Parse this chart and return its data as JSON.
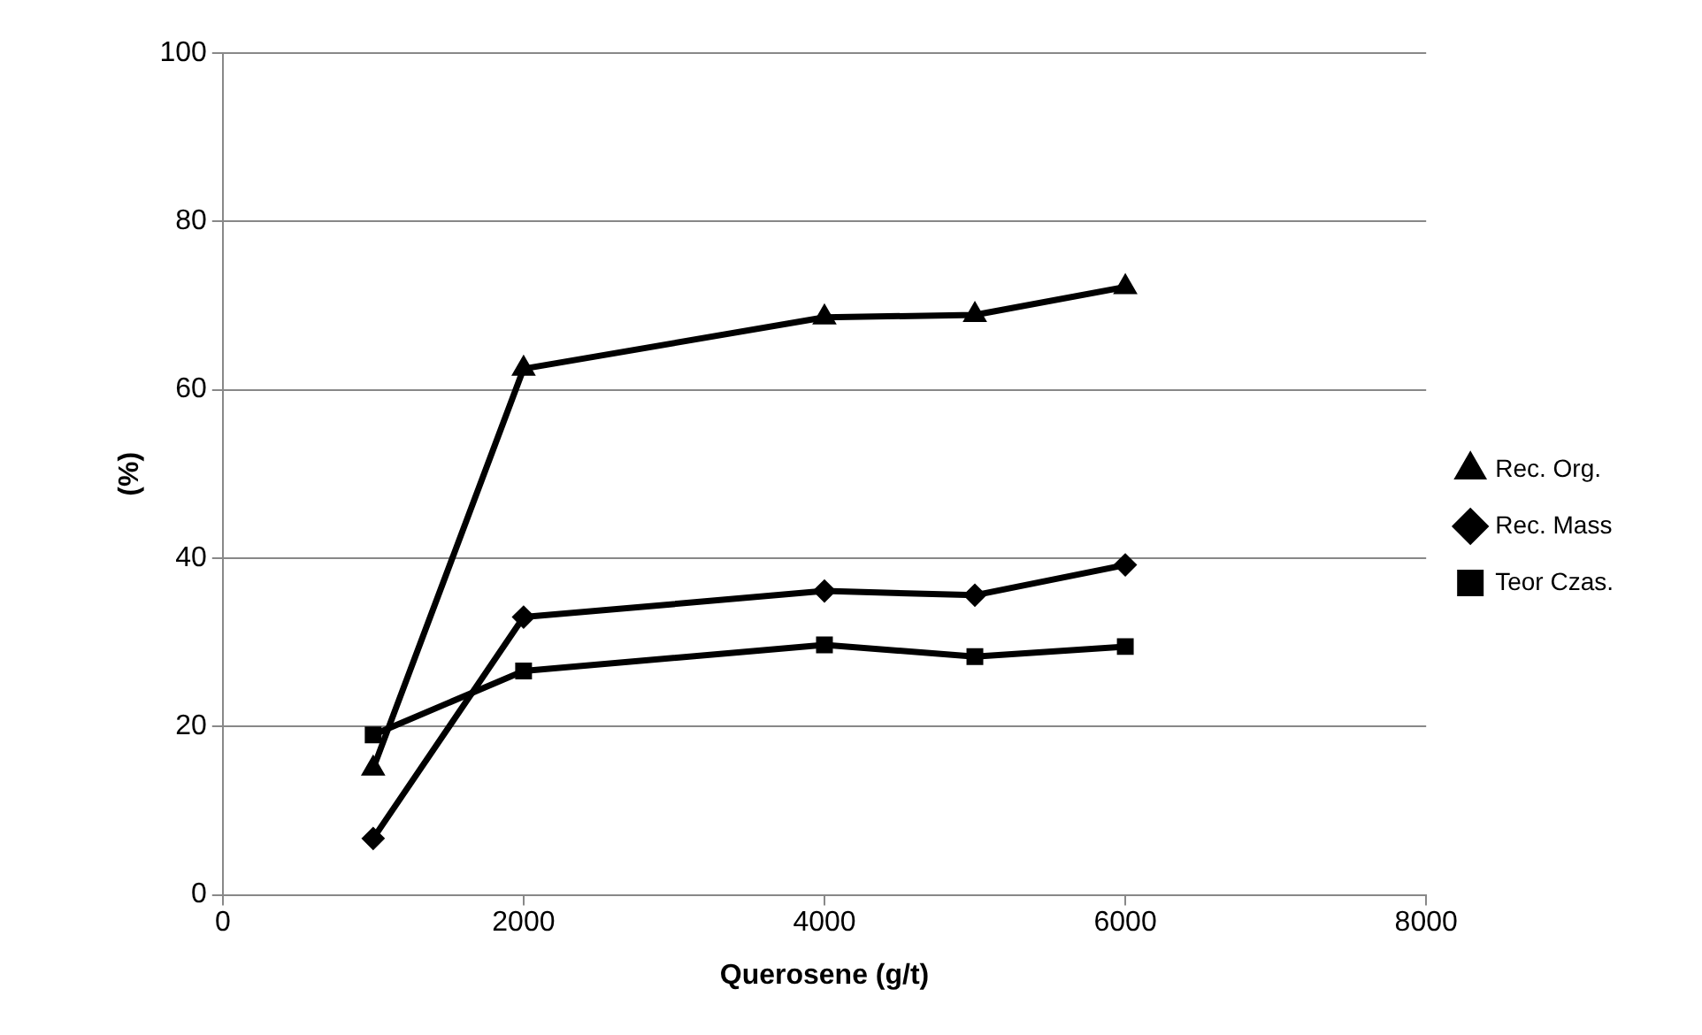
{
  "chart_data": {
    "type": "line",
    "xlabel": "Querosene (g/t)",
    "ylabel": "(%)",
    "x": [
      1000,
      2000,
      4000,
      5000,
      6000
    ],
    "series": [
      {
        "name": "Rec. Org.",
        "color": "#000000",
        "marker": "triangle",
        "values": [
          15,
          62.5,
          68.6,
          68.9,
          72.2
        ]
      },
      {
        "name": "Rec. Mass",
        "color": "#000000",
        "marker": "diamond",
        "values": [
          6.7,
          33,
          36.1,
          35.6,
          39.2
        ]
      },
      {
        "name": "Teor Czas.",
        "color": "#000000",
        "marker": "square",
        "values": [
          19,
          26.6,
          29.7,
          28.3,
          29.5
        ]
      }
    ],
    "xlim": [
      0,
      8000
    ],
    "xticks": [
      0,
      2000,
      4000,
      6000,
      8000
    ],
    "ylim": [
      0,
      100
    ],
    "yticks": [
      0,
      20,
      40,
      60,
      80,
      100
    ],
    "grid": "y",
    "legend": "right",
    "line_style": "solid"
  }
}
